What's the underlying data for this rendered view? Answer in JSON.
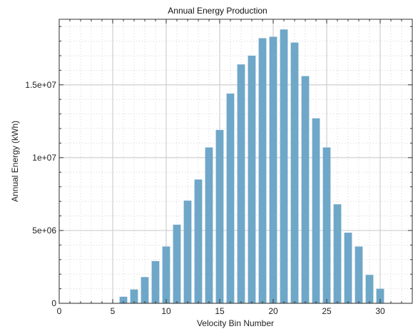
{
  "chart_data": {
    "type": "bar",
    "title": "Annual Energy Production",
    "xlabel": "Velocity Bin Number",
    "ylabel": "Annual Energy (kWh)",
    "xlim": [
      0,
      33
    ],
    "ylim": [
      0,
      19500000
    ],
    "x": [
      6,
      7,
      8,
      9,
      10,
      11,
      12,
      13,
      14,
      15,
      16,
      17,
      18,
      19,
      20,
      21,
      22,
      23,
      24,
      25,
      26,
      27,
      28,
      29,
      30
    ],
    "values": [
      450000,
      950000,
      1800000,
      2900000,
      3900000,
      5400000,
      7050000,
      8500000,
      10700000,
      11900000,
      14400000,
      16400000,
      17000000,
      18200000,
      18300000,
      18800000,
      17900000,
      15600000,
      12700000,
      10700000,
      6800000,
      4850000,
      3900000,
      1950000,
      1000000
    ],
    "bar_color": "#6fa7c8",
    "x_ticks": [
      0,
      5,
      10,
      15,
      20,
      25,
      30
    ],
    "x_tick_labels": [
      "0",
      "5",
      "10",
      "15",
      "20",
      "25",
      "30"
    ],
    "y_ticks": [
      0,
      5000000,
      10000000,
      15000000
    ],
    "y_tick_labels": [
      "0",
      "5e+06",
      "1e+07",
      "1.5e+07"
    ],
    "grid": true,
    "minor_grid": true,
    "legend": "none"
  }
}
